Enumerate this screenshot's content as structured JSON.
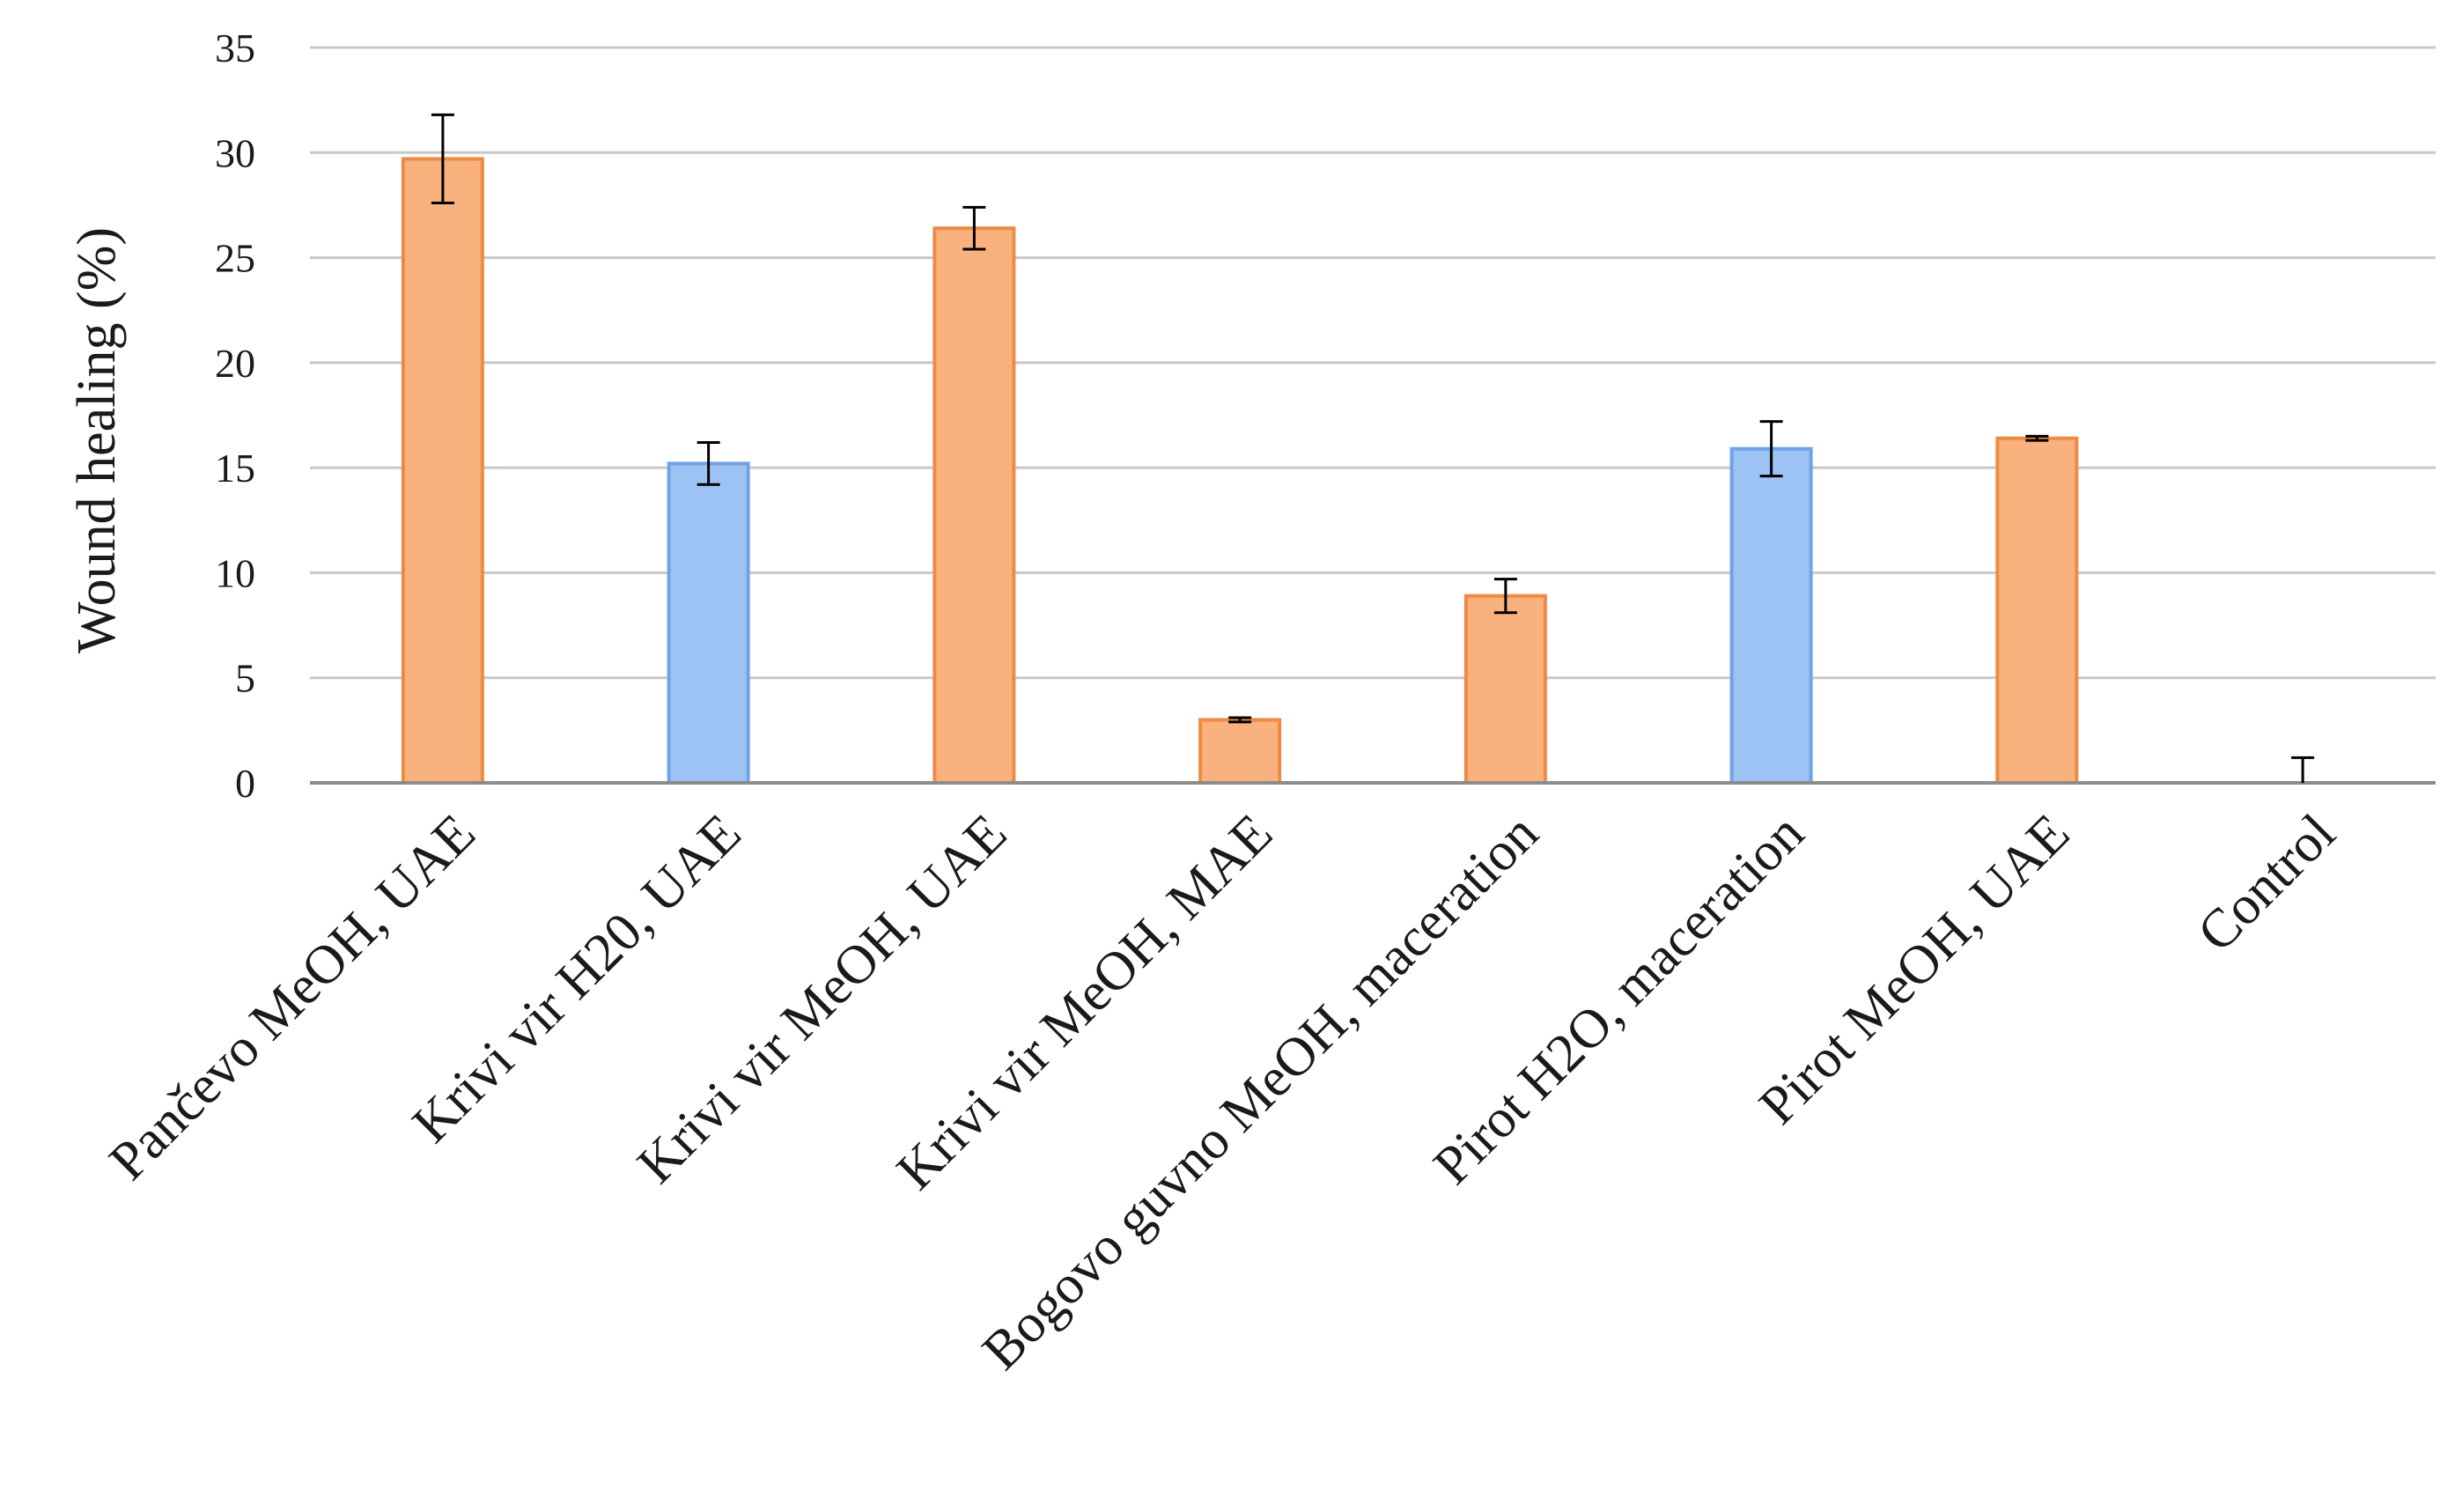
{
  "chart_data": {
    "type": "bar",
    "title": "",
    "xlabel": "",
    "ylabel": "Wound healing  (%)",
    "ylim": [
      0,
      35
    ],
    "yticks": [
      0,
      5,
      10,
      15,
      20,
      25,
      30,
      35
    ],
    "grid": true,
    "legend": "none",
    "categories": [
      "Pančevo MeOH, UAE",
      "Krivi vir H20, UAE",
      "Krivi vir MeOH, UAE",
      "Krivi vir MeOH, MAE",
      "Bogovo guvno MeOH, maceration",
      "Pirot H2O, maceration",
      "Pirot MeOH, UAE",
      "Control"
    ],
    "values": [
      29.7,
      15.2,
      26.4,
      3.0,
      8.9,
      15.9,
      16.4,
      0
    ],
    "errors": [
      2.1,
      1.0,
      1.0,
      0.1,
      0.8,
      1.3,
      0.1,
      1.2
    ],
    "bar_colors": [
      "#f9b27d",
      "#9dc3f5",
      "#f9b27d",
      "#f9b27d",
      "#f9b27d",
      "#9dc3f5",
      "#f9b27d",
      "#f9b27d"
    ],
    "bar_edge_colors": [
      "#ef8a45",
      "#6fa3e8",
      "#ef8a45",
      "#ef8a45",
      "#ef8a45",
      "#6fa3e8",
      "#ef8a45",
      "#ef8a45"
    ]
  },
  "colors": {
    "gridline": "#c8c8c8",
    "axis": "#8c8c8c",
    "error_bar": "#000000",
    "text": "#1a1a1a"
  }
}
